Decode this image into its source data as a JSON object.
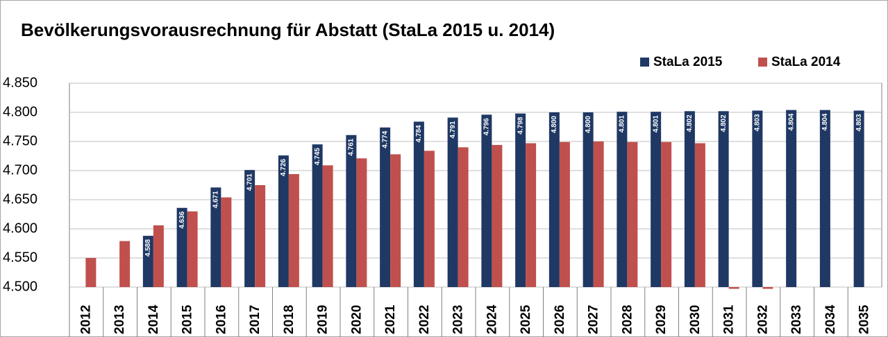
{
  "chart_data": {
    "type": "bar",
    "title": "Bevölkerungsvorausrechnung für Abstatt (StaLa 2015 u. 2014)",
    "categories": [
      "2012",
      "2013",
      "2014",
      "2015",
      "2016",
      "2017",
      "2018",
      "2019",
      "2020",
      "2021",
      "2022",
      "2023",
      "2024",
      "2025",
      "2026",
      "2027",
      "2028",
      "2029",
      "2030",
      "2031",
      "2032",
      "2033",
      "2034",
      "2035"
    ],
    "series": [
      {
        "name": "StaLa 2015",
        "color": "#1f3864",
        "values": [
          null,
          null,
          4588,
          4636,
          4671,
          4701,
          4726,
          4745,
          4761,
          4774,
          4784,
          4791,
          4796,
          4798,
          4800,
          4800,
          4801,
          4801,
          4802,
          4802,
          4803,
          4804,
          4804,
          4803
        ],
        "value_labels": [
          null,
          null,
          "4.588",
          "4.636",
          "4.671",
          "4.701",
          "4.726",
          "4.745",
          "4.761",
          "4.774",
          "4.784",
          "4.791",
          "4.796",
          "4.798",
          "4.800",
          "4.800",
          "4.801",
          "4.801",
          "4.802",
          "4.802",
          "4.803",
          "4.804",
          "4.804",
          "4.803"
        ]
      },
      {
        "name": "StaLa 2014",
        "color": "#c0504d",
        "values": [
          4550,
          4579,
          4606,
          4630,
          4654,
          4675,
          4694,
          4709,
          4721,
          4728,
          4734,
          4740,
          4744,
          4747,
          4749,
          4750,
          4749,
          4749,
          4747,
          4497,
          4497,
          null,
          null,
          null
        ]
      }
    ],
    "ylim": [
      4500,
      4850
    ],
    "yticks": [
      {
        "value": 4500,
        "label": "4.500"
      },
      {
        "value": 4550,
        "label": "4.550"
      },
      {
        "value": 4600,
        "label": "4.600"
      },
      {
        "value": 4650,
        "label": "4.650"
      },
      {
        "value": 4700,
        "label": "4.700"
      },
      {
        "value": 4750,
        "label": "4.750"
      },
      {
        "value": 4800,
        "label": "4.800"
      },
      {
        "value": 4850,
        "label": "4.850"
      }
    ],
    "grid": true,
    "legend": "top-right"
  }
}
